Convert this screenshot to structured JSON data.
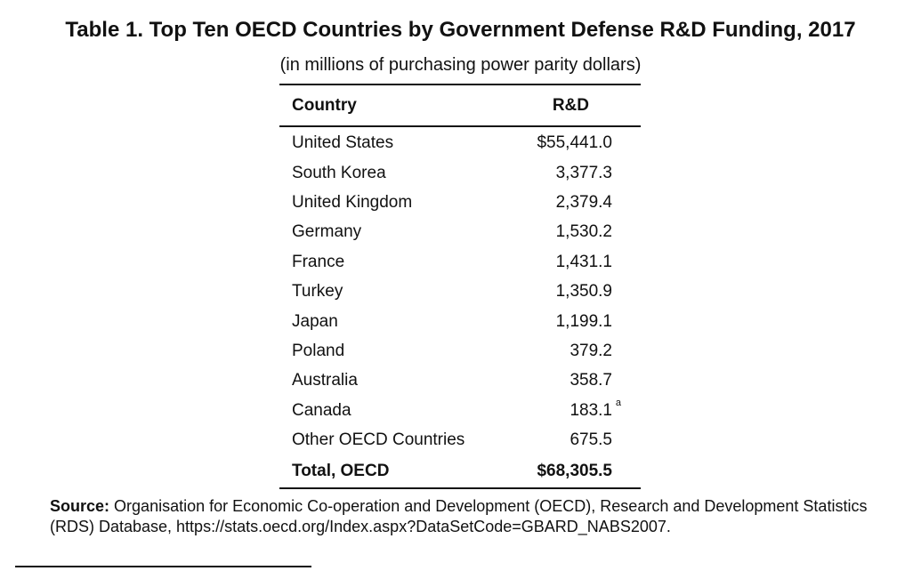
{
  "title": "Table 1. Top Ten OECD Countries by Government Defense R&D Funding, 2017",
  "subtitle": "(in millions of purchasing power parity dollars)",
  "table": {
    "headers": [
      "Country",
      "R&D"
    ],
    "rows": [
      {
        "country": "United States",
        "value": "$55,441.0",
        "note": ""
      },
      {
        "country": "South Korea",
        "value": "3,377.3",
        "note": ""
      },
      {
        "country": "United Kingdom",
        "value": "2,379.4",
        "note": ""
      },
      {
        "country": "Germany",
        "value": "1,530.2",
        "note": ""
      },
      {
        "country": "France",
        "value": "1,431.1",
        "note": ""
      },
      {
        "country": "Turkey",
        "value": "1,350.9",
        "note": ""
      },
      {
        "country": "Japan",
        "value": "1,199.1",
        "note": ""
      },
      {
        "country": "Poland",
        "value": "379.2",
        "note": ""
      },
      {
        "country": "Australia",
        "value": "358.7",
        "note": ""
      },
      {
        "country": "Canada",
        "value": "183.1",
        "note": "a"
      },
      {
        "country": "Other OECD Countries",
        "value": "675.5",
        "note": ""
      }
    ],
    "total": {
      "country": "Total, OECD",
      "value": "$68,305.5"
    }
  },
  "source": {
    "label": "Source:",
    "text": "Organisation for Economic Co-operation and Development (OECD), Research and Development Statistics (RDS) Database, https://stats.oecd.org/Index.aspx?DataSetCode=GBARD_NABS2007."
  }
}
